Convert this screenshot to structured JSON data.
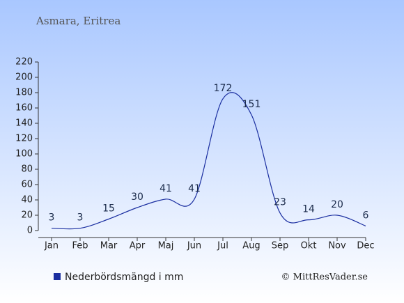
{
  "chart_data": {
    "type": "line",
    "title": "Asmara, Eritrea",
    "categories": [
      "Jan",
      "Feb",
      "Mar",
      "Apr",
      "Maj",
      "Jun",
      "Jul",
      "Aug",
      "Sep",
      "Okt",
      "Nov",
      "Dec"
    ],
    "series": [
      {
        "name": "Nederbördsmängd i mm",
        "color": "#1a2ea0",
        "values": [
          3,
          3,
          15,
          30,
          41,
          41,
          172,
          151,
          23,
          14,
          20,
          6
        ]
      }
    ],
    "ylim": [
      0,
      220
    ],
    "yticks": [
      0,
      20,
      40,
      60,
      80,
      100,
      120,
      140,
      160,
      180,
      200,
      220
    ],
    "copyright": "© MittResVader.se"
  }
}
